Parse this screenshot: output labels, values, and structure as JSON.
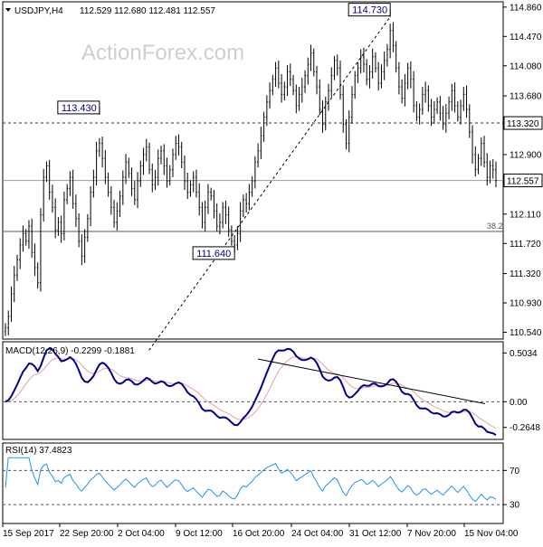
{
  "chart_data": [
    {
      "type": "candlestick",
      "header": {
        "symbol": "USDJPY,H4",
        "ohlc": "112.529 112.680 112.481 112.557"
      },
      "watermark": "ActionForex.com",
      "y_ticks": [
        "114.860",
        "114.470",
        "114.080",
        "113.680",
        "113.290",
        "112.900",
        "112.510",
        "112.110",
        "111.720",
        "111.320",
        "110.930",
        "110.540"
      ],
      "ylim": [
        110.45,
        114.93
      ],
      "x_ticks": [
        "15 Sep 2017",
        "22 Sep 20:00",
        "2 Oct 04:00",
        "9 Oct 12:00",
        "16 Oct 20:00",
        "24 Oct 04:00",
        "31 Oct 12:00",
        "7 Nov 20:00",
        "15 Nov 04:00"
      ],
      "levels": [
        {
          "value": 113.32,
          "label": "113.320",
          "style": "dashed",
          "boxed": true
        },
        {
          "value": 112.557,
          "label": "112.557",
          "style": "solid",
          "boxed": true
        },
        {
          "value": 111.88,
          "label": "38.2",
          "style": "solid",
          "boxed": false
        }
      ],
      "callouts": [
        {
          "label": "113.430",
          "value": 113.43
        },
        {
          "label": "114.730",
          "value": 114.73
        },
        {
          "label": "111.640",
          "value": 111.64
        }
      ],
      "trendline": {
        "from": 110.3,
        "to": 114.73,
        "style": "dashed"
      },
      "series_close": [
        110.6,
        110.75,
        111.05,
        111.3,
        111.5,
        111.7,
        111.85,
        111.75,
        111.95,
        111.6,
        111.4,
        111.2,
        112.1,
        112.6,
        112.75,
        112.4,
        112.2,
        111.9,
        112.0,
        111.85,
        112.3,
        112.45,
        112.6,
        112.25,
        112.05,
        111.75,
        111.55,
        111.8,
        112.05,
        112.4,
        112.6,
        112.95,
        113.05,
        112.85,
        112.6,
        112.4,
        112.2,
        112.0,
        112.15,
        112.35,
        112.6,
        112.8,
        112.65,
        112.45,
        112.3,
        112.55,
        112.75,
        112.9,
        113.0,
        112.7,
        112.5,
        112.6,
        112.85,
        112.95,
        112.75,
        112.55,
        112.7,
        112.9,
        113.05,
        113.0,
        112.8,
        112.55,
        112.4,
        112.5,
        112.6,
        112.4,
        112.2,
        112.0,
        112.2,
        112.4,
        112.35,
        112.15,
        111.95,
        112.0,
        112.2,
        112.1,
        111.9,
        111.75,
        111.7,
        111.85,
        112.15,
        112.3,
        112.25,
        112.4,
        112.55,
        112.8,
        112.95,
        113.15,
        113.4,
        113.6,
        113.75,
        113.9,
        114.05,
        113.85,
        113.7,
        113.8,
        114.0,
        113.9,
        113.75,
        113.55,
        113.7,
        113.8,
        113.95,
        114.1,
        114.25,
        114.0,
        113.8,
        113.5,
        113.3,
        113.6,
        113.75,
        113.95,
        114.15,
        114.05,
        113.7,
        113.3,
        113.05,
        113.4,
        113.7,
        113.95,
        114.05,
        114.2,
        114.1,
        113.9,
        114.0,
        114.2,
        114.05,
        113.85,
        114.0,
        114.15,
        114.3,
        114.55,
        114.35,
        114.05,
        113.8,
        113.65,
        113.85,
        114.05,
        113.9,
        113.55,
        113.4,
        113.5,
        113.7,
        113.75,
        113.55,
        113.4,
        113.5,
        113.6,
        113.45,
        113.3,
        113.45,
        113.6,
        113.75,
        113.55,
        113.4,
        113.55,
        113.7,
        113.5,
        113.2,
        112.9,
        112.7,
        112.85,
        113.05,
        112.8,
        112.6,
        112.75,
        112.7,
        112.557
      ]
    },
    {
      "type": "line",
      "title": "MACD(12,26,9) -0.2299 -0.1881",
      "y_ticks": [
        "0.5034",
        "0.00",
        "-0.2648"
      ],
      "ylim": [
        -0.37,
        0.6
      ]
    },
    {
      "type": "line",
      "title": "RSI(14) 37.4823",
      "y_ticks": [
        "70",
        "30"
      ],
      "ylim": [
        10,
        100
      ]
    }
  ]
}
